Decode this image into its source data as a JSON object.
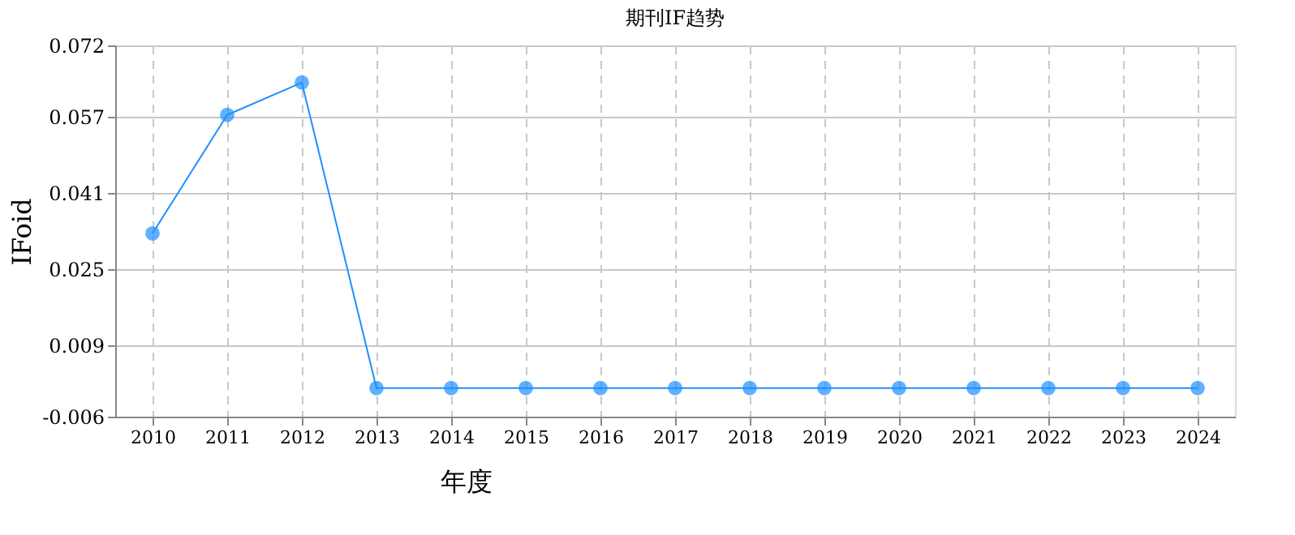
{
  "chart_data": {
    "type": "line",
    "title": "期刊IF趋势",
    "xlabel": "年度",
    "ylabel": "IFoid",
    "categories": [
      "2010",
      "2011",
      "2012",
      "2013",
      "2014",
      "2015",
      "2016",
      "2017",
      "2018",
      "2019",
      "2020",
      "2021",
      "2022",
      "2023",
      "2024"
    ],
    "series": [
      {
        "color": "#1e90ff",
        "values": [
          0.0325,
          0.0574,
          0.0642,
          0,
          0,
          0,
          0,
          0,
          0,
          0,
          0,
          0,
          0,
          0,
          0
        ]
      }
    ],
    "ylim": [
      -0.006,
      0.072
    ],
    "yticks": [
      -0.006,
      0.009,
      0.025,
      0.041,
      0.057,
      0.072
    ],
    "grid": true,
    "marker": "circle",
    "line_style": "solid",
    "legend": false
  }
}
